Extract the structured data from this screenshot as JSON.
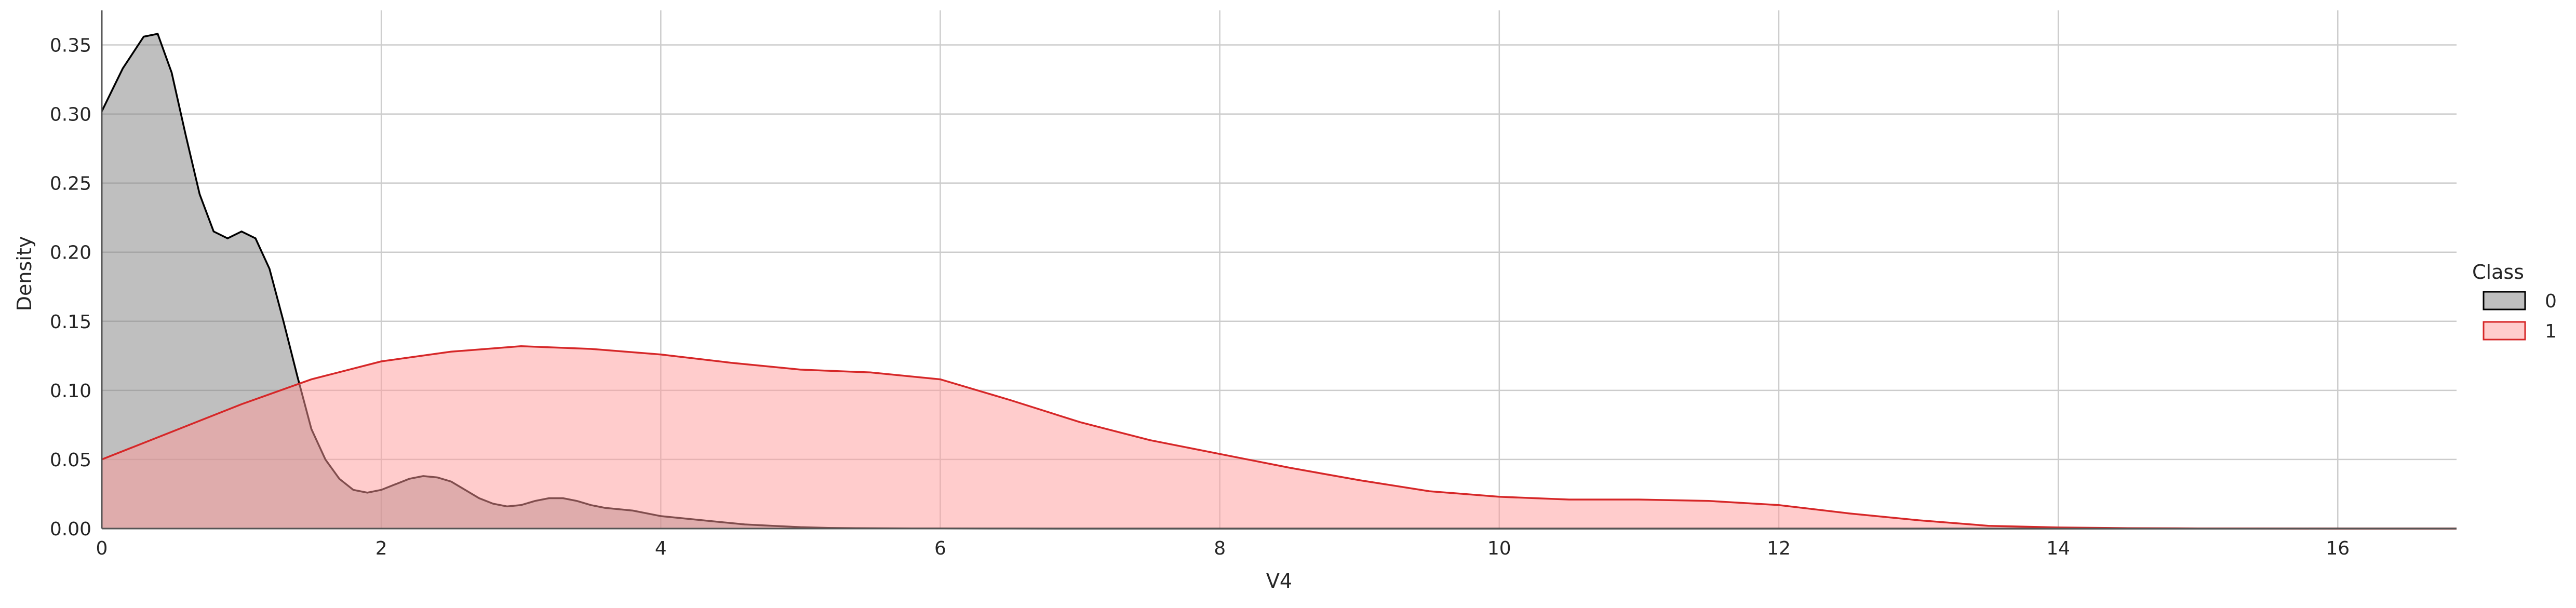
{
  "chart_data": {
    "type": "area",
    "title": "",
    "xlabel": "V4",
    "ylabel": "Density",
    "xlim": [
      0,
      16.85
    ],
    "ylim": [
      0,
      0.375
    ],
    "xticks": [
      0,
      2,
      4,
      6,
      8,
      10,
      12,
      14,
      16
    ],
    "xtick_labels": [
      "0",
      "2",
      "4",
      "6",
      "8",
      "10",
      "12",
      "14",
      "16"
    ],
    "yticks": [
      0.0,
      0.05,
      0.1,
      0.15,
      0.2,
      0.25,
      0.3,
      0.35
    ],
    "ytick_labels": [
      "0.00",
      "0.05",
      "0.10",
      "0.15",
      "0.20",
      "0.25",
      "0.30",
      "0.35"
    ],
    "grid": true,
    "legend": {
      "title": "Class",
      "placement": "right"
    },
    "series": [
      {
        "name": "0",
        "stroke": "#000000",
        "fill": "#808080",
        "x": [
          0,
          0.15,
          0.3,
          0.4,
          0.5,
          0.6,
          0.7,
          0.8,
          0.9,
          1.0,
          1.1,
          1.2,
          1.3,
          1.4,
          1.5,
          1.6,
          1.7,
          1.8,
          1.9,
          2.0,
          2.1,
          2.2,
          2.3,
          2.4,
          2.5,
          2.6,
          2.7,
          2.8,
          2.9,
          3.0,
          3.1,
          3.2,
          3.3,
          3.4,
          3.5,
          3.6,
          3.7,
          3.8,
          3.9,
          4.0,
          4.2,
          4.4,
          4.6,
          4.8,
          5.0,
          5.2,
          5.4,
          5.6,
          5.8,
          6.0,
          6.5,
          7.0,
          8.0,
          10.0,
          12.0,
          14.0,
          16.85
        ],
        "values": [
          0.302,
          0.333,
          0.356,
          0.358,
          0.33,
          0.285,
          0.242,
          0.215,
          0.21,
          0.215,
          0.21,
          0.188,
          0.15,
          0.11,
          0.072,
          0.05,
          0.036,
          0.028,
          0.026,
          0.028,
          0.032,
          0.036,
          0.038,
          0.037,
          0.034,
          0.028,
          0.022,
          0.018,
          0.016,
          0.017,
          0.02,
          0.022,
          0.022,
          0.02,
          0.017,
          0.015,
          0.014,
          0.013,
          0.011,
          0.009,
          0.007,
          0.005,
          0.003,
          0.002,
          0.001,
          0.0005,
          0.0003,
          0.0002,
          0.0001,
          0.0001,
          5e-05,
          0.0,
          0.0,
          0.0,
          0.0,
          0.0,
          0.0
        ]
      },
      {
        "name": "1",
        "stroke": "#d62728",
        "fill": "#ff9a9a",
        "x": [
          0,
          0.5,
          1.0,
          1.5,
          2.0,
          2.5,
          3.0,
          3.5,
          4.0,
          4.5,
          5.0,
          5.5,
          6.0,
          6.5,
          7.0,
          7.5,
          8.0,
          8.5,
          9.0,
          9.5,
          10.0,
          10.5,
          11.0,
          11.5,
          12.0,
          12.5,
          13.0,
          13.5,
          14.0,
          14.5,
          15.0,
          16.0,
          16.85
        ],
        "values": [
          0.05,
          0.07,
          0.09,
          0.108,
          0.121,
          0.128,
          0.132,
          0.13,
          0.126,
          0.12,
          0.115,
          0.113,
          0.108,
          0.093,
          0.077,
          0.064,
          0.054,
          0.044,
          0.035,
          0.027,
          0.023,
          0.021,
          0.021,
          0.02,
          0.017,
          0.011,
          0.006,
          0.002,
          0.0008,
          0.0003,
          0.0001,
          0.0,
          0.0
        ]
      }
    ]
  }
}
